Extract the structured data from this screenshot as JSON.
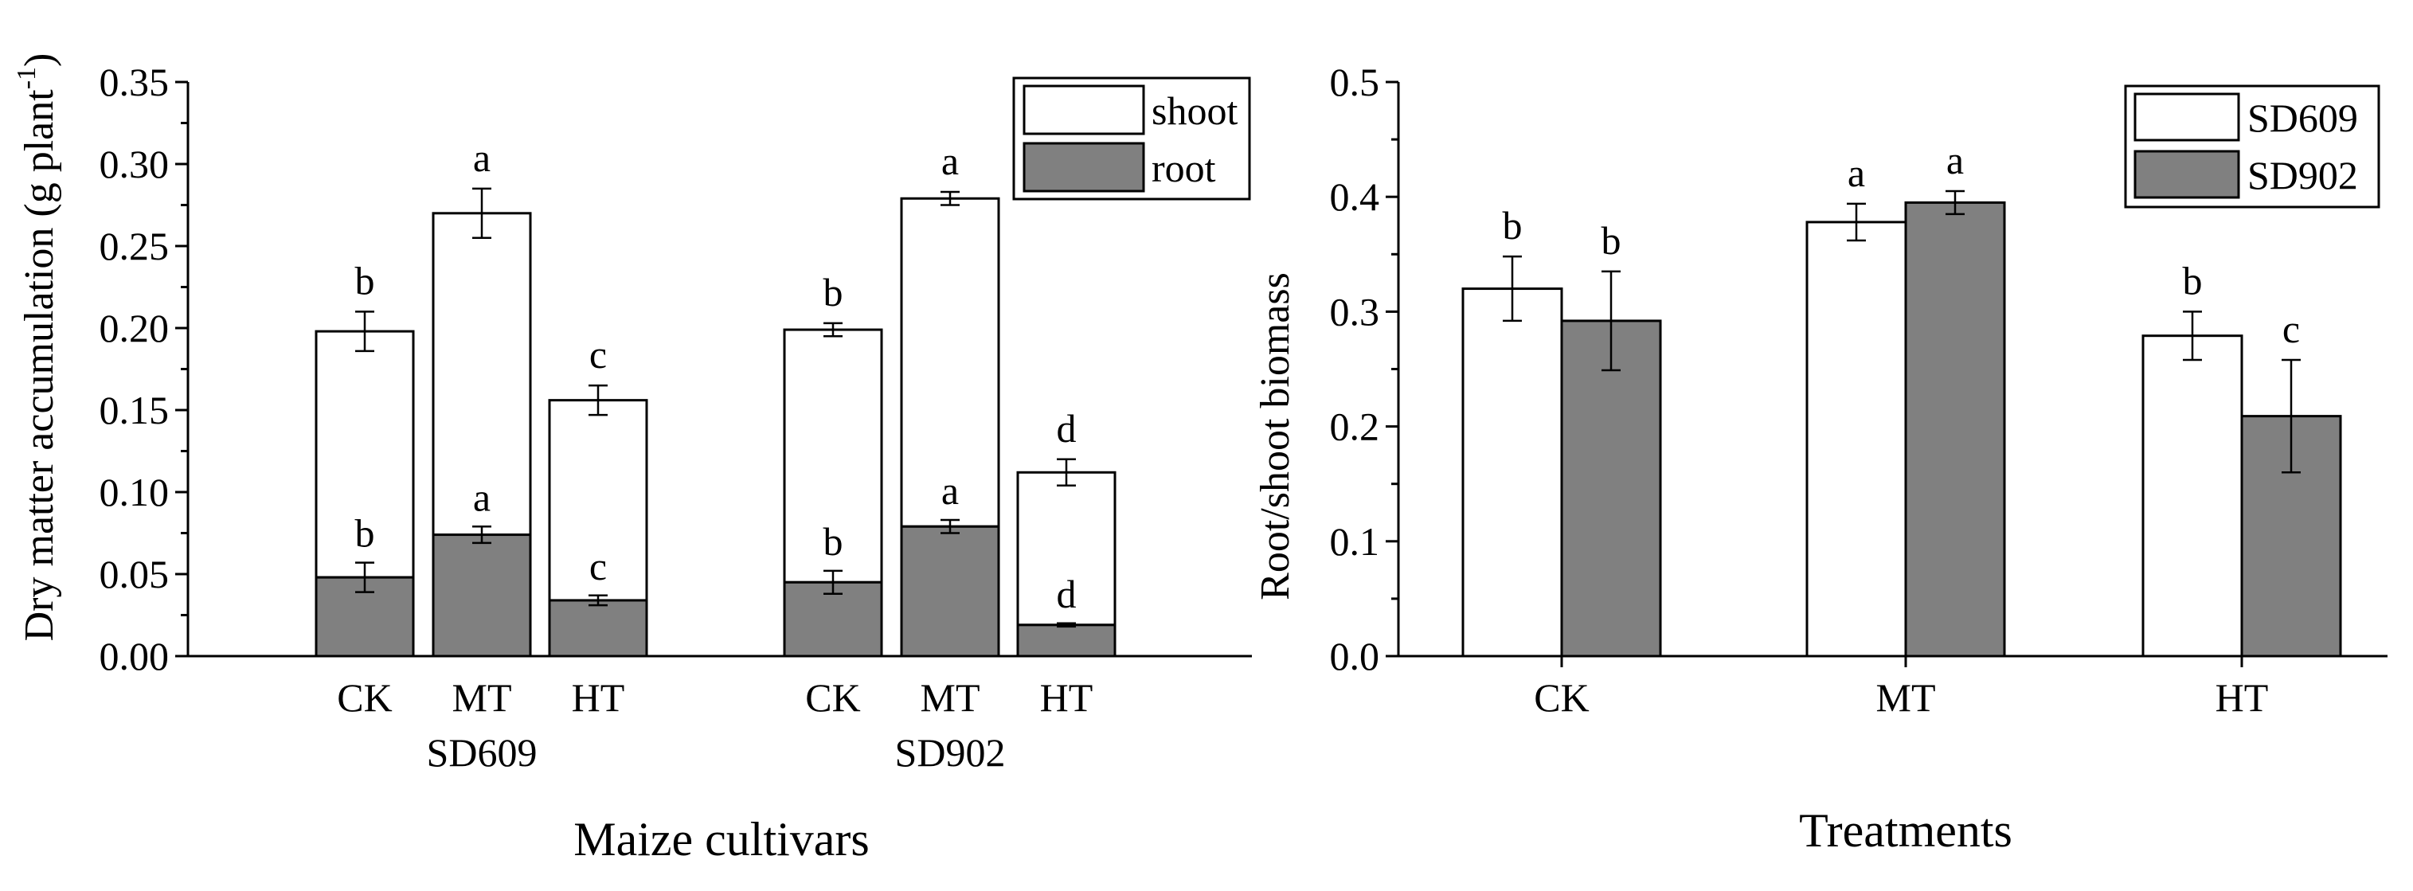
{
  "chart_data": [
    {
      "type": "bar",
      "stacked": true,
      "ylabel": "Dry matter accumulation (g plant",
      "ylabel_superscript": "-1",
      "ylabel_close": ")",
      "xlabel": "Maize cultivars",
      "ylim": [
        0,
        0.35
      ],
      "yticks": [
        "0.00",
        "0.05",
        "0.10",
        "0.15",
        "0.20",
        "0.25",
        "0.30",
        "0.35"
      ],
      "groups": [
        {
          "name": "SD609",
          "categories": [
            "CK",
            "MT",
            "HT"
          ],
          "total": [
            0.198,
            0.27,
            0.156
          ],
          "total_err": [
            0.012,
            0.015,
            0.009
          ],
          "total_letters": [
            "b",
            "a",
            "c"
          ],
          "root": [
            0.048,
            0.074,
            0.034
          ],
          "root_err": [
            0.009,
            0.005,
            0.003
          ],
          "root_letters": [
            "b",
            "a",
            "c"
          ]
        },
        {
          "name": "SD902",
          "categories": [
            "CK",
            "MT",
            "HT"
          ],
          "total": [
            0.199,
            0.279,
            0.112
          ],
          "total_err": [
            0.004,
            0.004,
            0.008
          ],
          "total_letters": [
            "b",
            "a",
            "d"
          ],
          "root": [
            0.045,
            0.079,
            0.019
          ],
          "root_err": [
            0.007,
            0.004,
            0.001
          ],
          "root_letters": [
            "b",
            "a",
            "d"
          ]
        }
      ],
      "legend": {
        "position": "top-right",
        "entries": [
          "shoot",
          "root"
        ]
      }
    },
    {
      "type": "bar",
      "ylabel": "Root/shoot biomass",
      "xlabel": "Treatments",
      "ylim": [
        0,
        0.5
      ],
      "yticks": [
        "0.0",
        "0.1",
        "0.2",
        "0.3",
        "0.4",
        "0.5"
      ],
      "categories": [
        "CK",
        "MT",
        "HT"
      ],
      "series": [
        {
          "name": "SD609",
          "values": [
            0.32,
            0.378,
            0.279
          ],
          "errors": [
            0.028,
            0.016,
            0.021
          ],
          "letters": [
            "b",
            "a",
            "b"
          ]
        },
        {
          "name": "SD902",
          "values": [
            0.292,
            0.395,
            0.209
          ],
          "errors": [
            0.043,
            0.01,
            0.049
          ],
          "letters": [
            "b",
            "a",
            "c"
          ]
        }
      ],
      "legend": {
        "position": "top-right",
        "entries": [
          "SD609",
          "SD902"
        ]
      }
    }
  ],
  "colors": {
    "shoot": "#ffffff",
    "root": "#808080",
    "SD609": "#ffffff",
    "SD902": "#808080",
    "axis": "#000000"
  }
}
